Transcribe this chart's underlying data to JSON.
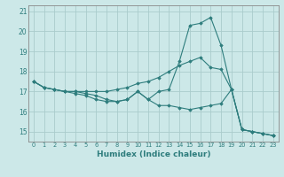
{
  "xlabel": "Humidex (Indice chaleur)",
  "background_color": "#cce8e8",
  "grid_color": "#aacccc",
  "line_color": "#2e7d7d",
  "xlim": [
    -0.5,
    23.5
  ],
  "ylim": [
    14.5,
    21.3
  ],
  "yticks": [
    15,
    16,
    17,
    18,
    19,
    20,
    21
  ],
  "xticks": [
    0,
    1,
    2,
    3,
    4,
    5,
    6,
    7,
    8,
    9,
    10,
    11,
    12,
    13,
    14,
    15,
    16,
    17,
    18,
    19,
    20,
    21,
    22,
    23
  ],
  "series": [
    [
      17.5,
      17.2,
      17.1,
      17.0,
      16.9,
      16.8,
      16.6,
      16.5,
      16.5,
      16.6,
      17.0,
      16.6,
      16.3,
      16.3,
      16.2,
      16.1,
      16.2,
      16.3,
      16.4,
      17.1,
      15.1,
      15.0,
      14.9,
      14.8
    ],
    [
      17.5,
      17.2,
      17.1,
      17.0,
      17.0,
      17.0,
      17.0,
      17.0,
      17.1,
      17.2,
      17.4,
      17.5,
      17.7,
      18.0,
      18.3,
      18.5,
      18.7,
      18.2,
      18.1,
      17.1,
      15.1,
      15.0,
      14.9,
      14.8
    ],
    [
      17.5,
      17.2,
      17.1,
      17.0,
      17.0,
      16.9,
      16.8,
      16.6,
      16.5,
      16.6,
      17.0,
      16.6,
      17.0,
      17.1,
      18.5,
      20.3,
      20.4,
      20.7,
      19.3,
      17.1,
      15.1,
      15.0,
      14.9,
      14.8
    ]
  ]
}
